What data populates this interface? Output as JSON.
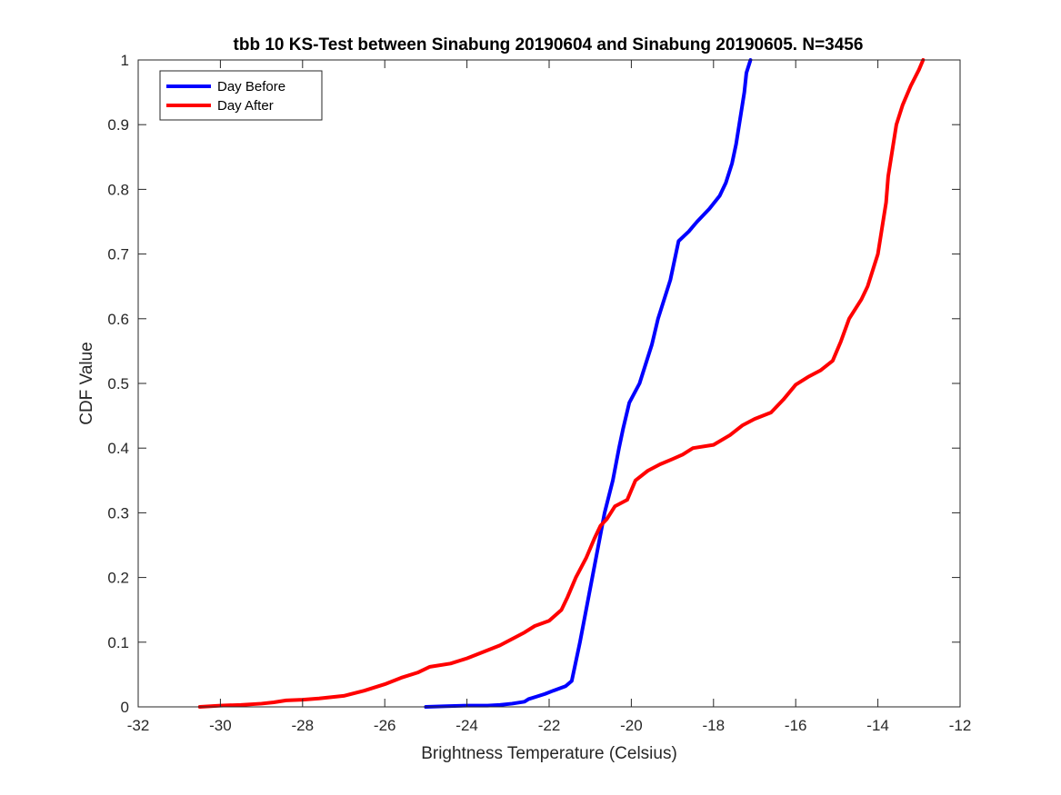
{
  "chart_data": {
    "type": "line",
    "title": "tbb 10 KS-Test between Sinabung 20190604 and Sinabung 20190605. N=3456",
    "xlabel": "Brightness Temperature (Celsius)",
    "ylabel": "CDF Value",
    "xlim": [
      -32,
      -12
    ],
    "ylim": [
      0,
      1
    ],
    "xticks": [
      -32,
      -30,
      -28,
      -26,
      -24,
      -22,
      -20,
      -18,
      -16,
      -14,
      -12
    ],
    "yticks": [
      0,
      0.1,
      0.2,
      0.3,
      0.4,
      0.5,
      0.6,
      0.7,
      0.8,
      0.9,
      1
    ],
    "grid": false,
    "legend_position": "top-left",
    "series": [
      {
        "name": "Day Before",
        "color": "#0000ff",
        "points": [
          [
            -25.0,
            0.0
          ],
          [
            -24.5,
            0.001
          ],
          [
            -24.0,
            0.002
          ],
          [
            -23.5,
            0.002
          ],
          [
            -23.2,
            0.003
          ],
          [
            -22.9,
            0.005
          ],
          [
            -22.6,
            0.008
          ],
          [
            -22.5,
            0.012
          ],
          [
            -22.3,
            0.016
          ],
          [
            -22.1,
            0.02
          ],
          [
            -21.9,
            0.025
          ],
          [
            -21.6,
            0.032
          ],
          [
            -21.45,
            0.04
          ],
          [
            -21.35,
            0.07
          ],
          [
            -21.25,
            0.1
          ],
          [
            -21.1,
            0.15
          ],
          [
            -20.95,
            0.2
          ],
          [
            -20.8,
            0.25
          ],
          [
            -20.65,
            0.3
          ],
          [
            -20.45,
            0.35
          ],
          [
            -20.3,
            0.4
          ],
          [
            -20.2,
            0.43
          ],
          [
            -20.05,
            0.47
          ],
          [
            -19.8,
            0.5
          ],
          [
            -19.65,
            0.53
          ],
          [
            -19.5,
            0.56
          ],
          [
            -19.35,
            0.6
          ],
          [
            -19.2,
            0.63
          ],
          [
            -19.05,
            0.66
          ],
          [
            -18.95,
            0.69
          ],
          [
            -18.85,
            0.72
          ],
          [
            -18.6,
            0.735
          ],
          [
            -18.4,
            0.75
          ],
          [
            -18.1,
            0.77
          ],
          [
            -17.85,
            0.79
          ],
          [
            -17.7,
            0.81
          ],
          [
            -17.55,
            0.84
          ],
          [
            -17.45,
            0.87
          ],
          [
            -17.35,
            0.91
          ],
          [
            -17.25,
            0.95
          ],
          [
            -17.2,
            0.98
          ],
          [
            -17.1,
            1.0
          ]
        ]
      },
      {
        "name": "Day After",
        "color": "#ff0000",
        "points": [
          [
            -30.5,
            0.0
          ],
          [
            -30.0,
            0.002
          ],
          [
            -29.5,
            0.003
          ],
          [
            -29.0,
            0.005
          ],
          [
            -28.7,
            0.007
          ],
          [
            -28.4,
            0.01
          ],
          [
            -28.0,
            0.011
          ],
          [
            -27.6,
            0.013
          ],
          [
            -27.0,
            0.017
          ],
          [
            -26.5,
            0.025
          ],
          [
            -26.0,
            0.035
          ],
          [
            -25.6,
            0.045
          ],
          [
            -25.2,
            0.053
          ],
          [
            -24.9,
            0.062
          ],
          [
            -24.4,
            0.067
          ],
          [
            -24.0,
            0.075
          ],
          [
            -23.6,
            0.085
          ],
          [
            -23.2,
            0.095
          ],
          [
            -22.9,
            0.105
          ],
          [
            -22.6,
            0.115
          ],
          [
            -22.35,
            0.125
          ],
          [
            -22.0,
            0.133
          ],
          [
            -21.7,
            0.15
          ],
          [
            -21.55,
            0.17
          ],
          [
            -21.35,
            0.2
          ],
          [
            -21.1,
            0.23
          ],
          [
            -20.9,
            0.26
          ],
          [
            -20.75,
            0.28
          ],
          [
            -20.6,
            0.29
          ],
          [
            -20.4,
            0.31
          ],
          [
            -20.1,
            0.32
          ],
          [
            -19.9,
            0.35
          ],
          [
            -19.6,
            0.365
          ],
          [
            -19.3,
            0.375
          ],
          [
            -19.0,
            0.383
          ],
          [
            -18.75,
            0.39
          ],
          [
            -18.5,
            0.4
          ],
          [
            -18.0,
            0.405
          ],
          [
            -17.6,
            0.42
          ],
          [
            -17.3,
            0.435
          ],
          [
            -17.0,
            0.445
          ],
          [
            -16.6,
            0.455
          ],
          [
            -16.3,
            0.475
          ],
          [
            -16.0,
            0.498
          ],
          [
            -15.7,
            0.51
          ],
          [
            -15.4,
            0.52
          ],
          [
            -15.1,
            0.535
          ],
          [
            -14.9,
            0.565
          ],
          [
            -14.7,
            0.6
          ],
          [
            -14.4,
            0.63
          ],
          [
            -14.25,
            0.65
          ],
          [
            -14.1,
            0.68
          ],
          [
            -14.0,
            0.7
          ],
          [
            -13.9,
            0.74
          ],
          [
            -13.8,
            0.78
          ],
          [
            -13.75,
            0.82
          ],
          [
            -13.65,
            0.86
          ],
          [
            -13.55,
            0.9
          ],
          [
            -13.4,
            0.93
          ],
          [
            -13.2,
            0.96
          ],
          [
            -13.0,
            0.985
          ],
          [
            -12.9,
            1.0
          ]
        ]
      }
    ]
  }
}
